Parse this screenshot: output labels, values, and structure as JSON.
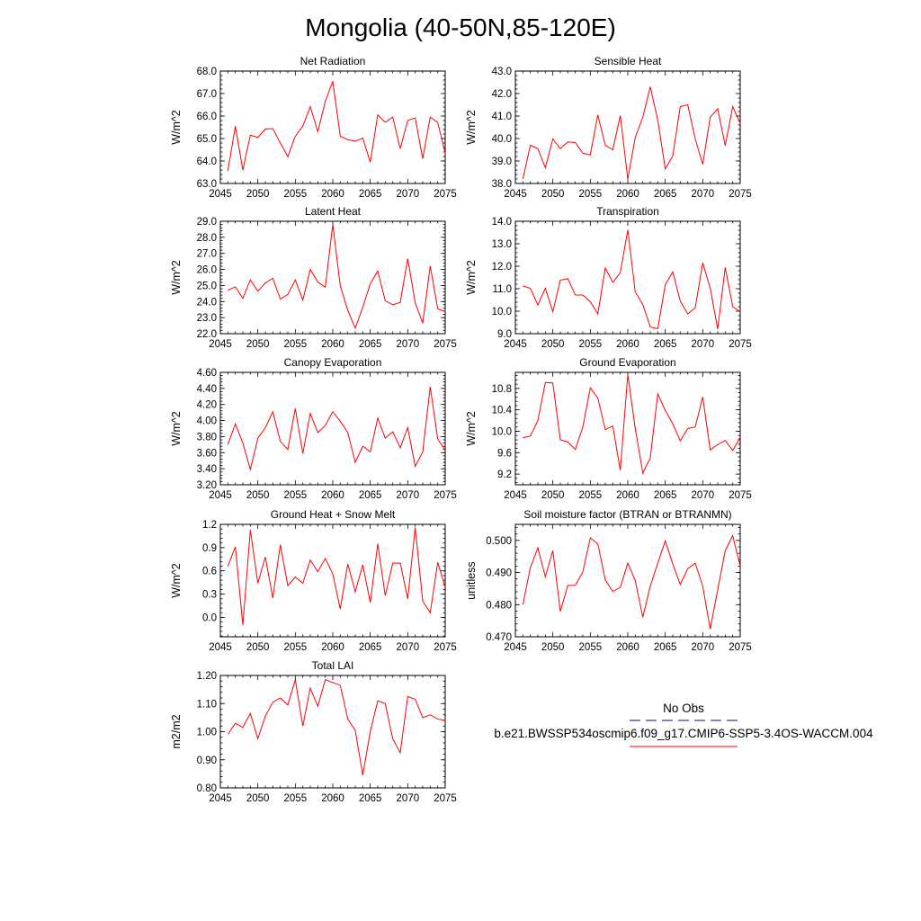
{
  "page_title": "Mongolia (40-50N,85-120E)",
  "legend": {
    "obs_label": "No Obs",
    "obs_color": "#3b3b8f",
    "model_label": "b.e21.BWSSP534oscmip6.f09_g17.CMIP6-SSP5-3.4OS-WACCM.004",
    "model_color": "#ff0000"
  },
  "series_color": "#ff0000",
  "chart_data": [
    {
      "type": "line",
      "title": "Net Radiation",
      "ylabel": "W/m^2",
      "xlim": [
        2045,
        2075
      ],
      "ylim": [
        63.0,
        68.0
      ],
      "xticks": [
        2045,
        2050,
        2055,
        2060,
        2065,
        2070,
        2075
      ],
      "yticks": [
        63.0,
        64.0,
        65.0,
        66.0,
        67.0,
        68.0
      ],
      "ytick_labels": [
        "63.0",
        "64.0",
        "65.0",
        "66.0",
        "67.0",
        "68.0"
      ],
      "x": [
        2046,
        2047,
        2048,
        2049,
        2050,
        2051,
        2052,
        2053,
        2054,
        2055,
        2056,
        2057,
        2058,
        2059,
        2060,
        2061,
        2062,
        2063,
        2064,
        2065,
        2066,
        2067,
        2068,
        2069,
        2070,
        2071,
        2072,
        2073,
        2074,
        2075
      ],
      "y": [
        63.55,
        65.55,
        63.6,
        65.15,
        65.05,
        65.42,
        65.44,
        64.8,
        64.2,
        65.1,
        65.55,
        66.42,
        65.3,
        66.65,
        67.55,
        65.1,
        64.95,
        64.88,
        65.02,
        63.95,
        66.05,
        65.72,
        65.95,
        64.55,
        65.8,
        65.92,
        64.1,
        65.95,
        65.72,
        64.35
      ]
    },
    {
      "type": "line",
      "title": "Sensible Heat",
      "ylabel": "W/m^2",
      "xlim": [
        2045,
        2075
      ],
      "ylim": [
        38.0,
        43.0
      ],
      "xticks": [
        2045,
        2050,
        2055,
        2060,
        2065,
        2070,
        2075
      ],
      "yticks": [
        38.0,
        39.0,
        40.0,
        41.0,
        42.0,
        43.0
      ],
      "ytick_labels": [
        "38.0",
        "39.0",
        "40.0",
        "41.0",
        "42.0",
        "43.0"
      ],
      "x": [
        2046,
        2047,
        2048,
        2049,
        2050,
        2051,
        2052,
        2053,
        2054,
        2055,
        2056,
        2057,
        2058,
        2059,
        2060,
        2061,
        2062,
        2063,
        2064,
        2065,
        2066,
        2067,
        2068,
        2069,
        2070,
        2071,
        2072,
        2073,
        2074,
        2075
      ],
      "y": [
        38.2,
        39.7,
        39.55,
        38.7,
        39.98,
        39.55,
        39.85,
        39.82,
        39.35,
        39.27,
        41.05,
        39.7,
        39.5,
        41.02,
        38.2,
        40.05,
        40.95,
        42.3,
        40.82,
        38.65,
        39.22,
        41.42,
        41.5,
        39.98,
        38.85,
        40.95,
        41.32,
        39.68,
        41.42,
        40.68
      ]
    },
    {
      "type": "line",
      "title": "Latent Heat",
      "ylabel": "W/m^2",
      "xlim": [
        2045,
        2075
      ],
      "ylim": [
        22.0,
        29.0
      ],
      "xticks": [
        2045,
        2050,
        2055,
        2060,
        2065,
        2070,
        2075
      ],
      "yticks": [
        22.0,
        23.0,
        24.0,
        25.0,
        26.0,
        27.0,
        28.0,
        29.0
      ],
      "ytick_labels": [
        "22.0",
        "23.0",
        "24.0",
        "25.0",
        "26.0",
        "27.0",
        "28.0",
        "29.0"
      ],
      "x": [
        2046,
        2047,
        2048,
        2049,
        2050,
        2051,
        2052,
        2053,
        2054,
        2055,
        2056,
        2057,
        2058,
        2059,
        2060,
        2061,
        2062,
        2063,
        2064,
        2065,
        2066,
        2067,
        2068,
        2069,
        2070,
        2071,
        2072,
        2073,
        2074,
        2075
      ],
      "y": [
        24.7,
        24.92,
        24.2,
        25.35,
        24.65,
        25.15,
        25.45,
        24.15,
        24.45,
        25.35,
        24.1,
        26.0,
        25.22,
        24.9,
        28.8,
        24.98,
        23.45,
        22.35,
        23.65,
        25.1,
        25.9,
        24.05,
        23.8,
        23.95,
        26.68,
        23.92,
        22.65,
        26.22,
        23.55,
        23.38
      ]
    },
    {
      "type": "line",
      "title": "Transpiration",
      "ylabel": "W/m^2",
      "xlim": [
        2045,
        2075
      ],
      "ylim": [
        9.0,
        14.0
      ],
      "xticks": [
        2045,
        2050,
        2055,
        2060,
        2065,
        2070,
        2075
      ],
      "yticks": [
        9.0,
        10.0,
        11.0,
        12.0,
        13.0,
        14.0
      ],
      "ytick_labels": [
        "9.0",
        "10.0",
        "11.0",
        "12.0",
        "13.0",
        "14.0"
      ],
      "x": [
        2046,
        2047,
        2048,
        2049,
        2050,
        2051,
        2052,
        2053,
        2054,
        2055,
        2056,
        2057,
        2058,
        2059,
        2060,
        2061,
        2062,
        2063,
        2064,
        2065,
        2066,
        2067,
        2068,
        2069,
        2070,
        2071,
        2072,
        2073,
        2074,
        2075
      ],
      "y": [
        11.12,
        11.02,
        10.28,
        11.02,
        9.98,
        11.38,
        11.45,
        10.72,
        10.72,
        10.42,
        9.88,
        11.92,
        11.28,
        11.72,
        13.62,
        10.85,
        10.3,
        9.3,
        9.22,
        11.18,
        11.75,
        10.45,
        9.88,
        10.15,
        12.15,
        11.02,
        9.2,
        11.95,
        10.2,
        9.98
      ]
    },
    {
      "type": "line",
      "title": "Canopy Evaporation",
      "ylabel": "W/m^2",
      "xlim": [
        2045,
        2075
      ],
      "ylim": [
        3.2,
        4.6
      ],
      "xticks": [
        2045,
        2050,
        2055,
        2060,
        2065,
        2070,
        2075
      ],
      "yticks": [
        3.2,
        3.4,
        3.6,
        3.8,
        4.0,
        4.2,
        4.4,
        4.6
      ],
      "ytick_labels": [
        "3.20",
        "3.40",
        "3.60",
        "3.80",
        "4.00",
        "4.20",
        "4.40",
        "4.60"
      ],
      "x": [
        2046,
        2047,
        2048,
        2049,
        2050,
        2051,
        2052,
        2053,
        2054,
        2055,
        2056,
        2057,
        2058,
        2059,
        2060,
        2061,
        2062,
        2063,
        2064,
        2065,
        2066,
        2067,
        2068,
        2069,
        2070,
        2071,
        2072,
        2073,
        2074,
        2075
      ],
      "y": [
        3.7,
        3.96,
        3.72,
        3.39,
        3.78,
        3.91,
        4.11,
        3.74,
        3.64,
        4.15,
        3.59,
        4.09,
        3.85,
        3.94,
        4.11,
        3.99,
        3.85,
        3.48,
        3.68,
        3.61,
        4.03,
        3.78,
        3.86,
        3.66,
        3.91,
        3.43,
        3.61,
        4.42,
        3.77,
        3.63
      ]
    },
    {
      "type": "line",
      "title": "Ground Evaporation",
      "ylabel": "W/m^2",
      "xlim": [
        2045,
        2075
      ],
      "ylim": [
        9.0,
        11.1
      ],
      "xticks": [
        2045,
        2050,
        2055,
        2060,
        2065,
        2070,
        2075
      ],
      "yticks": [
        9.2,
        9.6,
        10.0,
        10.4,
        10.8
      ],
      "ytick_labels": [
        "9.2",
        "9.6",
        "10.0",
        "10.4",
        "10.8"
      ],
      "x": [
        2046,
        2047,
        2048,
        2049,
        2050,
        2051,
        2052,
        2053,
        2054,
        2055,
        2056,
        2057,
        2058,
        2059,
        2060,
        2061,
        2062,
        2063,
        2064,
        2065,
        2066,
        2067,
        2068,
        2069,
        2070,
        2071,
        2072,
        2073,
        2074,
        2075
      ],
      "y": [
        9.88,
        9.91,
        10.2,
        10.91,
        10.9,
        9.84,
        9.8,
        9.66,
        10.08,
        10.81,
        10.62,
        10.03,
        10.1,
        9.27,
        11.06,
        10.05,
        9.22,
        9.5,
        10.7,
        10.39,
        10.14,
        9.82,
        10.05,
        10.08,
        10.64,
        9.65,
        9.75,
        9.83,
        9.64,
        9.89
      ]
    },
    {
      "type": "line",
      "title": "Ground Heat + Snow Melt",
      "ylabel": "W/m^2",
      "xlim": [
        2045,
        2075
      ],
      "ylim": [
        -0.25,
        1.2
      ],
      "xticks": [
        2045,
        2050,
        2055,
        2060,
        2065,
        2070,
        2075
      ],
      "yticks": [
        0.0,
        0.3,
        0.6,
        0.9,
        1.2
      ],
      "ytick_labels": [
        "0.0",
        "0.3",
        "0.6",
        "0.9",
        "1.2"
      ],
      "x": [
        2046,
        2047,
        2048,
        2049,
        2050,
        2051,
        2052,
        2053,
        2054,
        2055,
        2056,
        2057,
        2058,
        2059,
        2060,
        2061,
        2062,
        2063,
        2064,
        2065,
        2066,
        2067,
        2068,
        2069,
        2070,
        2071,
        2072,
        2073,
        2074,
        2075
      ],
      "y": [
        0.66,
        0.91,
        -0.1,
        1.13,
        0.44,
        0.78,
        0.25,
        0.94,
        0.41,
        0.52,
        0.44,
        0.74,
        0.59,
        0.76,
        0.56,
        0.11,
        0.69,
        0.33,
        0.68,
        0.19,
        0.95,
        0.28,
        0.7,
        0.7,
        0.24,
        1.16,
        0.21,
        0.06,
        0.71,
        0.39
      ]
    },
    {
      "type": "line",
      "title": "Soil moisture factor (BTRAN or BTRANMN)",
      "ylabel": "unitless",
      "xlim": [
        2045,
        2075
      ],
      "ylim": [
        0.47,
        0.505
      ],
      "xticks": [
        2045,
        2050,
        2055,
        2060,
        2065,
        2070,
        2075
      ],
      "yticks": [
        0.47,
        0.48,
        0.49,
        0.5
      ],
      "ytick_labels": [
        "0.470",
        "0.480",
        "0.490",
        "0.500"
      ],
      "x": [
        2046,
        2047,
        2048,
        2049,
        2050,
        2051,
        2052,
        2053,
        2054,
        2055,
        2056,
        2057,
        2058,
        2059,
        2060,
        2061,
        2062,
        2063,
        2064,
        2065,
        2066,
        2067,
        2068,
        2069,
        2070,
        2071,
        2072,
        2073,
        2074,
        2075
      ],
      "y": [
        0.48,
        0.4915,
        0.4977,
        0.4887,
        0.4968,
        0.4779,
        0.486,
        0.486,
        0.4902,
        0.5008,
        0.4989,
        0.4877,
        0.4841,
        0.4854,
        0.4929,
        0.4875,
        0.4761,
        0.4858,
        0.4929,
        0.4999,
        0.4927,
        0.4863,
        0.4912,
        0.4929,
        0.4858,
        0.4724,
        0.4847,
        0.4968,
        0.5015,
        0.4919
      ]
    },
    {
      "type": "line",
      "title": "Total LAI",
      "ylabel": "m2/m2",
      "xlim": [
        2045,
        2075
      ],
      "ylim": [
        0.8,
        1.2
      ],
      "xticks": [
        2045,
        2050,
        2055,
        2060,
        2065,
        2070,
        2075
      ],
      "yticks": [
        0.8,
        0.9,
        1.0,
        1.1,
        1.2
      ],
      "ytick_labels": [
        "0.80",
        "0.90",
        "1.00",
        "1.10",
        "1.20"
      ],
      "x": [
        2046,
        2047,
        2048,
        2049,
        2050,
        2051,
        2052,
        2053,
        2054,
        2055,
        2056,
        2057,
        2058,
        2059,
        2060,
        2061,
        2062,
        2063,
        2064,
        2065,
        2066,
        2067,
        2068,
        2069,
        2070,
        2071,
        2072,
        2073,
        2074,
        2075
      ],
      "y": [
        0.99,
        1.03,
        1.015,
        1.065,
        0.975,
        1.055,
        1.105,
        1.12,
        1.095,
        1.185,
        1.02,
        1.155,
        1.09,
        1.185,
        1.175,
        1.165,
        1.045,
        1.005,
        0.845,
        1.0,
        1.11,
        1.1,
        0.975,
        0.925,
        1.125,
        1.115,
        1.05,
        1.06,
        1.045,
        1.04
      ]
    }
  ]
}
